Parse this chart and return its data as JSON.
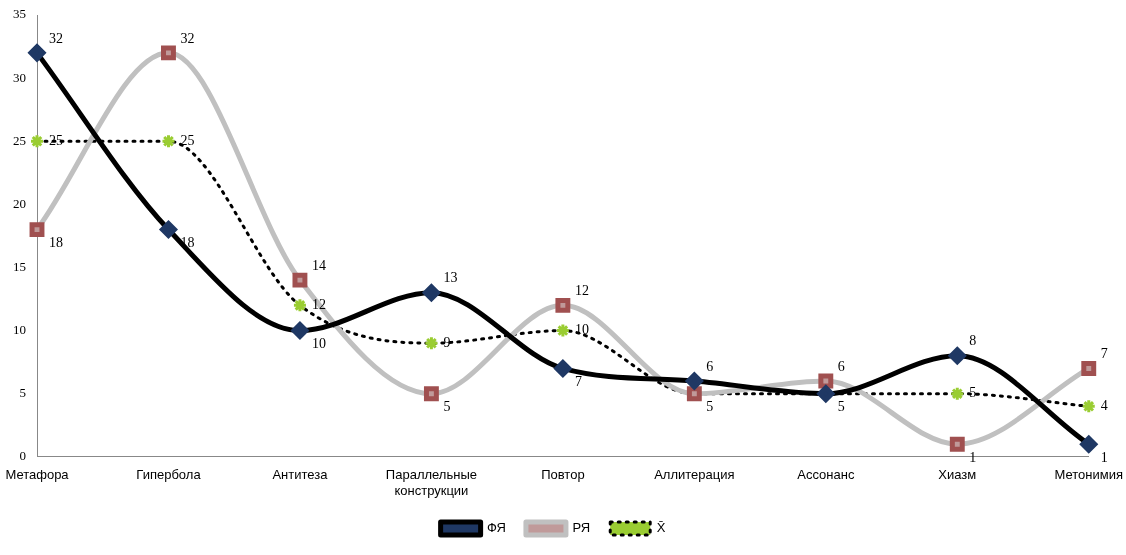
{
  "chart_data": {
    "type": "line",
    "categories": [
      "Метафора",
      "Гипербола",
      "Антитеза",
      "Параллельные конструкции",
      "Повтор",
      "Аллитерация",
      "Ассонанс",
      "Хиазм",
      "Метонимия"
    ],
    "series": [
      {
        "name": "ФЯ",
        "color": "#000000",
        "marker": "diamond",
        "line_style": "solid",
        "values": [
          32,
          18,
          10,
          13,
          7,
          6,
          5,
          8,
          1
        ],
        "value_labels": [
          "32",
          "18",
          "10",
          "13",
          "7",
          "6",
          null,
          "8",
          "1"
        ]
      },
      {
        "name": "РЯ",
        "color": "#c0c0c0",
        "marker": "square",
        "line_style": "solid",
        "values": [
          18,
          32,
          14,
          5,
          12,
          5,
          6,
          1,
          7
        ],
        "value_labels": [
          "18",
          "32",
          "14",
          "5",
          "12",
          null,
          "6",
          "1",
          "7"
        ]
      },
      {
        "name": "X̄",
        "color": "#000000",
        "marker": "cross",
        "line_style": "dotted",
        "values": [
          25,
          25,
          12,
          9,
          10,
          5,
          5,
          5,
          4
        ],
        "value_labels": [
          "25",
          "25",
          "12",
          "9",
          "10",
          "5",
          "5",
          "5",
          "4"
        ]
      }
    ],
    "ylim": [
      0,
      35
    ],
    "yticks": [
      0,
      5,
      10,
      15,
      20,
      25,
      30,
      35
    ],
    "grid": false,
    "legend": "bottom"
  }
}
